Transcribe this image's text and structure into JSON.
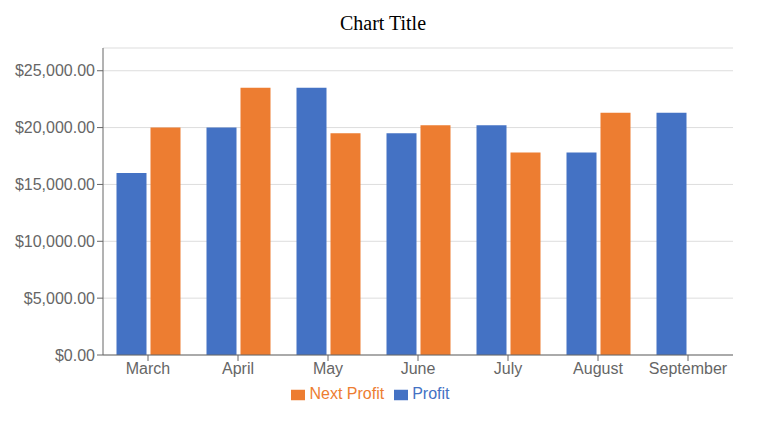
{
  "chart_data": {
    "type": "bar",
    "title": "Chart Title",
    "categories": [
      "March",
      "April",
      "May",
      "June",
      "July",
      "August",
      "September"
    ],
    "series": [
      {
        "name": "Profit",
        "color": "#4472C4",
        "values": [
          16000,
          20000,
          23500,
          19500,
          20200,
          17800,
          21300
        ]
      },
      {
        "name": "Next Profit",
        "color": "#ED7D31",
        "values": [
          20000,
          23500,
          19500,
          20200,
          17800,
          21300,
          null
        ]
      }
    ],
    "ylim": [
      0,
      27000
    ],
    "yticks": [
      {
        "value": 0,
        "label": "$0.00"
      },
      {
        "value": 5000,
        "label": "$5,000.00"
      },
      {
        "value": 10000,
        "label": "$10,000.00"
      },
      {
        "value": 15000,
        "label": "$15,000.00"
      },
      {
        "value": 20000,
        "label": "$20,000.00"
      },
      {
        "value": 25000,
        "label": "$25,000.00"
      }
    ],
    "grid": true,
    "legend": "bottom"
  }
}
